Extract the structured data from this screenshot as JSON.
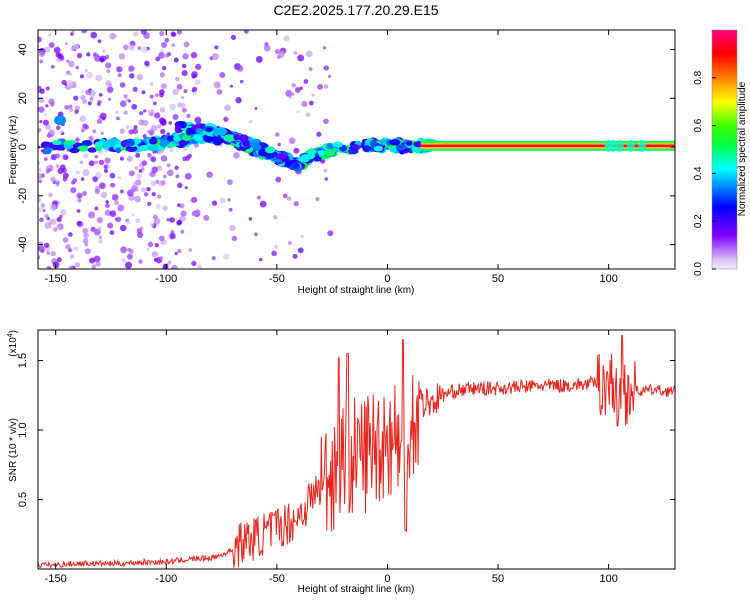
{
  "title": "C2E2.2025.177.20.29.E15",
  "top_panel": {
    "xlabel": "Height of straight line (km)",
    "ylabel": "Frequency (Hz)",
    "xticks": [
      "-150",
      "-100",
      "-50",
      "0",
      "50",
      "100"
    ],
    "yticks": [
      "40",
      "20",
      "0",
      "-20",
      "-40"
    ],
    "colorbar": {
      "label": "Normalized spectral amplitude",
      "ticks": [
        "0.0",
        "0.2",
        "0.4",
        "0.6",
        "0.8"
      ]
    }
  },
  "bottom_panel": {
    "xlabel": "Height of straight line (km)",
    "ylabel": "SNR (10 * v/v)",
    "multiplier": "(x10",
    "multiplier_exp": "4",
    "multiplier_close": ")",
    "xticks": [
      "-150",
      "-100",
      "-50",
      "0",
      "50",
      "100"
    ],
    "yticks": [
      "0.5",
      "1.0",
      "1.5"
    ]
  },
  "chart_data": [
    {
      "type": "heatmap",
      "title": "C2E2.2025.177.20.29.E15",
      "xlabel": "Height of straight line (km)",
      "ylabel": "Frequency (Hz)",
      "xlim": [
        -158,
        130
      ],
      "ylim": [
        -50,
        48
      ],
      "colorbar": {
        "label": "Normalized spectral amplitude",
        "range": [
          0.0,
          1.0
        ],
        "colormap": "rainbow"
      },
      "features": [
        {
          "name": "scattered low-amplitude noise",
          "x_range": [
            -158,
            -25
          ],
          "y_range": [
            -50,
            48
          ],
          "amplitude": 0.1
        },
        {
          "name": "main band",
          "points": [
            [
              -155,
              0
            ],
            [
              -130,
              0.5
            ],
            [
              -110,
              1
            ],
            [
              -100,
              2
            ],
            [
              -90,
              3.5
            ],
            [
              -80,
              4.5
            ],
            [
              -70,
              3
            ],
            [
              -60,
              -1
            ],
            [
              -50,
              -4
            ],
            [
              -40,
              -7
            ],
            [
              -35,
              -4
            ],
            [
              -25,
              -1
            ],
            [
              -10,
              0.5
            ],
            [
              0,
              0.5
            ],
            [
              10,
              0.5
            ],
            [
              20,
              0.3
            ]
          ],
          "amplitude": 0.45
        },
        {
          "name": "upper branch",
          "points": [
            [
              -95,
              8
            ],
            [
              -80,
              7
            ],
            [
              -70,
              4
            ],
            [
              -60,
              1
            ],
            [
              -50,
              -4
            ],
            [
              -40,
              -8
            ]
          ],
          "amplitude": 0.4
        },
        {
          "name": "spot",
          "x": -148,
          "y": 11,
          "amplitude": 0.35
        },
        {
          "name": "continuous line",
          "x_range": [
            15,
            130
          ],
          "y": 0.5,
          "amplitude": 1.0
        }
      ]
    },
    {
      "type": "line",
      "xlabel": "Height of straight line (km)",
      "ylabel": "SNR (10 * v/v)",
      "xlim": [
        -158,
        130
      ],
      "ylim": [
        0,
        1.72
      ],
      "y_multiplier": 10000,
      "color": "#e8241c",
      "series": [
        {
          "x": [
            -158,
            -150,
            -140,
            -130,
            -120,
            -110,
            -100,
            -90,
            -80,
            -75,
            -70,
            -65,
            -60,
            -55,
            -50,
            -45,
            -40,
            -35,
            -30,
            -25,
            -22,
            -20,
            -15,
            -10,
            -5,
            0,
            5,
            8,
            10,
            12,
            15,
            20,
            25,
            30,
            40,
            50,
            60,
            70,
            80,
            90,
            100,
            105,
            108,
            110,
            115,
            120,
            125,
            130
          ],
          "values": [
            0.03,
            0.03,
            0.04,
            0.04,
            0.04,
            0.05,
            0.05,
            0.07,
            0.08,
            0.1,
            0.14,
            0.2,
            0.22,
            0.26,
            0.3,
            0.33,
            0.38,
            0.5,
            0.6,
            0.7,
            0.82,
            0.85,
            0.8,
            0.85,
            0.9,
            0.95,
            0.95,
            0.5,
            1.1,
            1.05,
            1.2,
            1.2,
            1.25,
            1.28,
            1.3,
            1.3,
            1.31,
            1.32,
            1.32,
            1.33,
            1.35,
            1.3,
            1.28,
            1.3,
            1.28,
            1.29,
            1.28,
            1.28
          ],
          "peaks": [
            [
              -22,
              1.52
            ],
            [
              -18,
              1.55
            ],
            [
              7,
              1.65
            ],
            [
              8,
              0.28
            ],
            [
              106,
              1.68
            ],
            [
              104,
              1.03
            ]
          ]
        }
      ]
    }
  ]
}
